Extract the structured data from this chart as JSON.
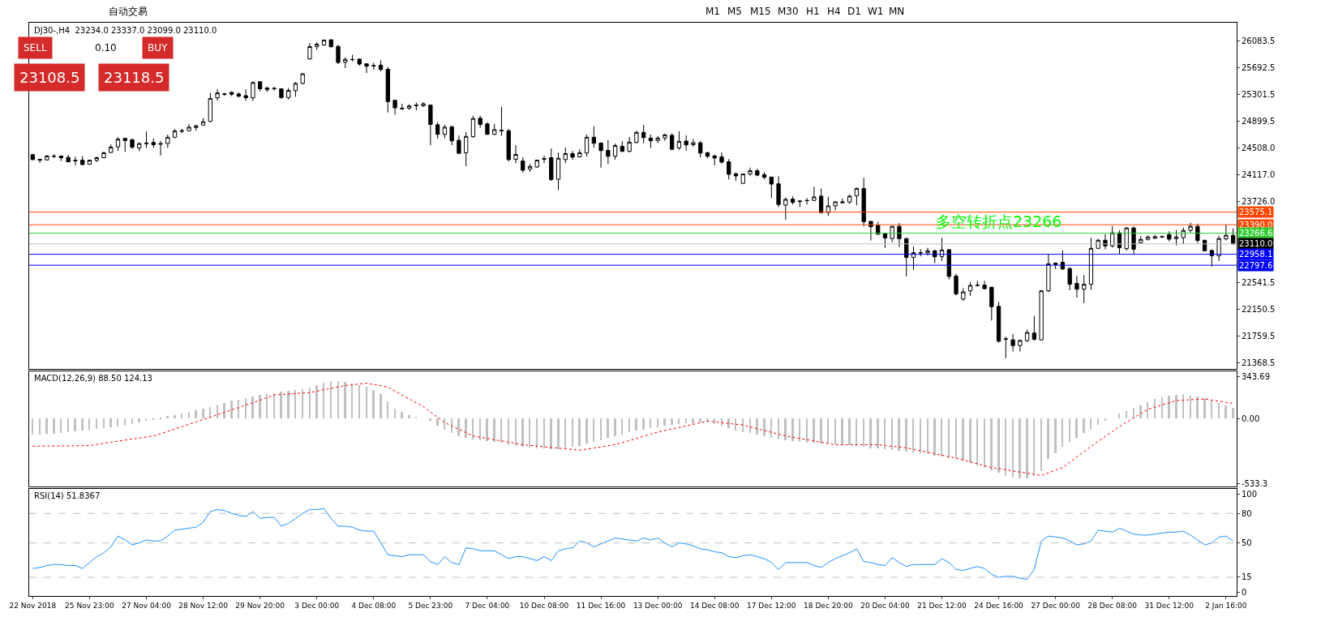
{
  "chart_data": [
    {
      "type": "candlestick",
      "title": "DJ30-,H4  23234.0 23337.0 23099.0 23110.0",
      "color": "#000000",
      "tick_labels": "y",
      "ohlc": [
        [
          24415,
          24427,
          24335,
          24343
        ],
        [
          24347,
          24355,
          24295,
          24335
        ],
        [
          24339,
          24407,
          24331,
          24395
        ],
        [
          24395,
          24423,
          24367,
          24391
        ],
        [
          24395,
          24403,
          24323,
          24371
        ],
        [
          24375,
          24415,
          24307,
          24311
        ],
        [
          24335,
          24387,
          24259,
          24327
        ],
        [
          24335,
          24395,
          24259,
          24271
        ],
        [
          24275,
          24343,
          24271,
          24335
        ],
        [
          24331,
          24387,
          24311,
          24371
        ],
        [
          24371,
          24459,
          24363,
          24443
        ],
        [
          24447,
          24566,
          24439,
          24526
        ],
        [
          24530,
          24674,
          24474,
          24642
        ],
        [
          24654,
          24662,
          24455,
          24622
        ],
        [
          24634,
          24650,
          24498,
          24526
        ],
        [
          24514,
          24594,
          24466,
          24578
        ],
        [
          24586,
          24753,
          24514,
          24578
        ],
        [
          24594,
          24654,
          24514,
          24562
        ],
        [
          24578,
          24614,
          24403,
          24570
        ],
        [
          24578,
          24709,
          24514,
          24670
        ],
        [
          24670,
          24793,
          24654,
          24761
        ],
        [
          24757,
          24793,
          24729,
          24765
        ],
        [
          24765,
          24861,
          24757,
          24817
        ],
        [
          24813,
          24857,
          24765,
          24837
        ],
        [
          24849,
          24952,
          24841,
          24897
        ],
        [
          24901,
          25319,
          24893,
          25239
        ],
        [
          25247,
          25371,
          25207,
          25319
        ],
        [
          25295,
          25319,
          25279,
          25303
        ],
        [
          25327,
          25343,
          25271,
          25299
        ],
        [
          25303,
          25327,
          25251,
          25271
        ],
        [
          25279,
          25371,
          25203,
          25247
        ],
        [
          25247,
          25490,
          25203,
          25470
        ],
        [
          25482,
          25490,
          25343,
          25379
        ],
        [
          25363,
          25410,
          25335,
          25391
        ],
        [
          25387,
          25406,
          25351,
          25379
        ],
        [
          25379,
          25383,
          25235,
          25251
        ],
        [
          25251,
          25391,
          25223,
          25355
        ],
        [
          25351,
          25478,
          25263,
          25458
        ],
        [
          25458,
          25610,
          25442,
          25598
        ],
        [
          25817,
          26048,
          25805,
          25996
        ],
        [
          25996,
          26060,
          25948,
          26032
        ],
        [
          26020,
          26100,
          26008,
          26092
        ],
        [
          26096,
          26100,
          25980,
          25996
        ],
        [
          26000,
          26020,
          25741,
          25765
        ],
        [
          25769,
          25841,
          25681,
          25809
        ],
        [
          25805,
          25876,
          25781,
          25807
        ],
        [
          25813,
          25821,
          25717,
          25741
        ],
        [
          25745,
          25749,
          25610,
          25709
        ],
        [
          25721,
          25761,
          25657,
          25713
        ],
        [
          25725,
          25797,
          25634,
          25661
        ],
        [
          25665,
          25701,
          25032,
          25191
        ],
        [
          25211,
          25215,
          25000,
          25100
        ],
        [
          25096,
          25160,
          25072,
          25088
        ],
        [
          25096,
          25152,
          25072,
          25128
        ],
        [
          25132,
          25179,
          25064,
          25140
        ],
        [
          25132,
          25183,
          25112,
          25160
        ],
        [
          25140,
          25144,
          24554,
          24857
        ],
        [
          24853,
          24889,
          24650,
          24713
        ],
        [
          24713,
          24853,
          24654,
          24817
        ],
        [
          24825,
          24833,
          24554,
          24618
        ],
        [
          24626,
          24698,
          24427,
          24435
        ],
        [
          24443,
          24745,
          24247,
          24682
        ],
        [
          24678,
          24984,
          24662,
          24944
        ],
        [
          24948,
          24984,
          24809,
          24857
        ],
        [
          24865,
          24889,
          24705,
          24713
        ],
        [
          24713,
          24865,
          24701,
          24781
        ],
        [
          24773,
          25116,
          24690,
          24765
        ],
        [
          24765,
          24793,
          24315,
          24343
        ],
        [
          24347,
          24554,
          24291,
          24419
        ],
        [
          24323,
          24375,
          24152,
          24188
        ],
        [
          24204,
          24275,
          24164,
          24243
        ],
        [
          24235,
          24339,
          24224,
          24335
        ],
        [
          24359,
          24403,
          24291,
          24351
        ],
        [
          24371,
          24506,
          24032,
          24052
        ],
        [
          24056,
          24447,
          23897,
          24363
        ],
        [
          24343,
          24518,
          24291,
          24431
        ],
        [
          24431,
          24470,
          24343,
          24379
        ],
        [
          24383,
          24494,
          24375,
          24443
        ],
        [
          24439,
          24709,
          24387,
          24670
        ],
        [
          24670,
          24829,
          24518,
          24582
        ],
        [
          24586,
          24594,
          24224,
          24474
        ],
        [
          24478,
          24626,
          24279,
          24391
        ],
        [
          24391,
          24578,
          24343,
          24550
        ],
        [
          24538,
          24614,
          24455,
          24463
        ],
        [
          24463,
          24674,
          24451,
          24598
        ],
        [
          24594,
          24765,
          24582,
          24741
        ],
        [
          24741,
          24853,
          24582,
          24666
        ],
        [
          24658,
          24709,
          24510,
          24618
        ],
        [
          24622,
          24686,
          24582,
          24658
        ],
        [
          24658,
          24721,
          24618,
          24705
        ],
        [
          24698,
          24729,
          24486,
          24494
        ],
        [
          24514,
          24757,
          24486,
          24610
        ],
        [
          24614,
          24698,
          24474,
          24558
        ],
        [
          24562,
          24646,
          24534,
          24590
        ],
        [
          24590,
          24614,
          24375,
          24439
        ],
        [
          24443,
          24459,
          24363,
          24391
        ],
        [
          24399,
          24411,
          24259,
          24367
        ],
        [
          24383,
          24447,
          24283,
          24307
        ],
        [
          24311,
          24351,
          24052,
          24128
        ],
        [
          24136,
          24156,
          24032,
          24104
        ],
        [
          23996,
          24140,
          23990,
          24132
        ],
        [
          24132,
          24228,
          24104,
          24180
        ],
        [
          24180,
          24208,
          24100,
          24116
        ],
        [
          24124,
          24156,
          24056,
          24084
        ],
        [
          24088,
          24092,
          23781,
          23985
        ],
        [
          23989,
          24100,
          23650,
          23686
        ],
        [
          23678,
          23789,
          23463,
          23761
        ],
        [
          23765,
          23805,
          23686,
          23718
        ],
        [
          23738,
          23750,
          23650,
          23730
        ],
        [
          23746,
          23781,
          23686,
          23742
        ],
        [
          23746,
          23945,
          23738,
          23797
        ],
        [
          23809,
          23921,
          23562,
          23566
        ],
        [
          23570,
          23801,
          23519,
          23666
        ],
        [
          23666,
          23734,
          23602,
          23726
        ],
        [
          23726,
          23773,
          23708,
          23714
        ],
        [
          23722,
          23833,
          23694,
          23809
        ],
        [
          23813,
          23933,
          23674,
          23921
        ],
        [
          23921,
          24076,
          23367,
          23435
        ],
        [
          23439,
          23443,
          23160,
          23363
        ],
        [
          23383,
          23431,
          23244,
          23252
        ],
        [
          23264,
          23272,
          23053,
          23196
        ],
        [
          23188,
          23375,
          23136,
          23367
        ],
        [
          23367,
          23415,
          23064,
          23188
        ],
        [
          23188,
          23200,
          22634,
          22913
        ],
        [
          22913,
          23072,
          22730,
          22981
        ],
        [
          22977,
          23033,
          22929,
          22981
        ],
        [
          22977,
          23053,
          22941,
          23009
        ],
        [
          23009,
          23025,
          22829,
          22921
        ],
        [
          22925,
          23200,
          22861,
          23021
        ],
        [
          23025,
          23029,
          22590,
          22634
        ],
        [
          22638,
          22674,
          22355,
          22379
        ],
        [
          22304,
          22463,
          22276,
          22407
        ],
        [
          22423,
          22551,
          22351,
          22503
        ],
        [
          22507,
          22571,
          22491,
          22503
        ],
        [
          22507,
          22571,
          22443,
          22455
        ],
        [
          22475,
          22483,
          21989,
          22192
        ],
        [
          22196,
          22260,
          21666,
          21686
        ],
        [
          21722,
          21754,
          21439,
          21714
        ],
        [
          21706,
          21794,
          21535,
          21623
        ],
        [
          21623,
          21710,
          21535,
          21698
        ],
        [
          21694,
          21854,
          21674,
          21814
        ],
        [
          21806,
          22057,
          21694,
          21714
        ],
        [
          21706,
          22435,
          21702,
          22423
        ],
        [
          22423,
          22961,
          22403,
          22818
        ],
        [
          22806,
          22838,
          22742,
          22830
        ],
        [
          22841,
          23017,
          22730,
          22742
        ],
        [
          22750,
          22770,
          22431,
          22519
        ],
        [
          22531,
          22642,
          22324,
          22447
        ],
        [
          22447,
          22654,
          22244,
          22519
        ],
        [
          22519,
          23200,
          22435,
          23045
        ],
        [
          23045,
          23184,
          23033,
          23164
        ],
        [
          23164,
          23252,
          23029,
          23080
        ],
        [
          23080,
          23371,
          23056,
          23272
        ],
        [
          23272,
          23307,
          22961,
          23053
        ],
        [
          23041,
          23359,
          23009,
          23343
        ],
        [
          23343,
          23367,
          22961,
          23033
        ],
        [
          23128,
          23224,
          23120,
          23176
        ],
        [
          23176,
          23232,
          23160,
          23212
        ],
        [
          23192,
          23240,
          23188,
          23216
        ],
        [
          23210,
          23232,
          23200,
          23214
        ],
        [
          23248,
          23295,
          23148,
          23180
        ],
        [
          23188,
          23311,
          23088,
          23212
        ],
        [
          23200,
          23347,
          23108,
          23307
        ],
        [
          23307,
          23419,
          23279,
          23367
        ],
        [
          23367,
          23407,
          23124,
          23160
        ],
        [
          23164,
          23168,
          23005,
          23009
        ],
        [
          23013,
          23029,
          22778,
          22937
        ],
        [
          22937,
          23228,
          22861,
          23188
        ],
        [
          23184,
          23395,
          23160,
          23236
        ],
        [
          23234,
          23337,
          23099,
          23110
        ]
      ],
      "ylim": [
        21281,
        26346
      ],
      "yticks": [
        26083.5,
        25692.5,
        25301.5,
        24899.5,
        {
          "value": 24508,
          "label": "24508.0"
        },
        {
          "value": 24117,
          "label": "24117.0"
        },
        {
          "value": 23726,
          "label": "23726.0"
        },
        22541.5,
        22150.5,
        21759.5,
        21368.5
      ],
      "ref_lines": [
        {
          "axis": "y",
          "value": 23575.1,
          "label": "23575.1",
          "color": "#ff4500"
        },
        {
          "axis": "y",
          "value": 23390.0,
          "label": "23390.0",
          "color": "#ff4500"
        },
        {
          "axis": "y",
          "value": 23266.6,
          "label": "23266.6",
          "color": "#32cd32"
        },
        {
          "axis": "y",
          "value": 23110.0,
          "label": "23110.0",
          "color": "#c0c0c0"
        },
        {
          "axis": "y",
          "value": 22958.1,
          "label": "22958.1",
          "color": "#0000ff"
        },
        {
          "axis": "y",
          "value": 22797.6,
          "label": "22797.6",
          "color": "#0000ff"
        }
      ],
      "annotations": [
        {
          "text": "多空转折点23266",
          "y": 23266
        },
        "SELL",
        "0.10",
        "BUY",
        "23108.5",
        "23118.5",
        "自动交易",
        "M1",
        "M5",
        "M15",
        "M30",
        "H1",
        "H4",
        "D1",
        "W1",
        "MN"
      ]
    },
    {
      "type": "bar",
      "title": "MACD(12,26,9) 88.50 124.13",
      "tick_labels": "y",
      "ylim": [
        -555,
        387
      ],
      "yticks": [
        343.69,
        {
          "value": 0,
          "label": "0.00"
        },
        -533.3
      ],
      "series": [
        {
          "type": "bar",
          "color": "#c0c0c0",
          "values": [
            -130,
            -128,
            -125,
            -122,
            -118,
            -112,
            -105,
            -100,
            -92,
            -85,
            -78,
            -70,
            -62,
            -55,
            -45,
            -32,
            -20,
            -5,
            10,
            22,
            32,
            42,
            55,
            68,
            82,
            98,
            115,
            130,
            145,
            158,
            170,
            182,
            195,
            202,
            210,
            218,
            226,
            234,
            242,
            255,
            275,
            295,
            310,
            305,
            300,
            290,
            275,
            260,
            235,
            200,
            140,
            80,
            55,
            30,
            15,
            0,
            -20,
            -55,
            -90,
            -120,
            -145,
            -160,
            -170,
            -178,
            -185,
            -190,
            -200,
            -215,
            -225,
            -230,
            -235,
            -240,
            -245,
            -250,
            -248,
            -240,
            -232,
            -220,
            -205,
            -190,
            -175,
            -160,
            -145,
            -128,
            -110,
            -98,
            -88,
            -78,
            -70,
            -60,
            -50,
            -45,
            -40,
            -35,
            -32,
            -30,
            -45,
            -60,
            -78,
            -95,
            -110,
            -120,
            -132,
            -145,
            -158,
            -170,
            -180,
            -185,
            -190,
            -195,
            -200,
            -203,
            -205,
            -208,
            -210,
            -215,
            -222,
            -230,
            -240,
            -245,
            -250,
            -255,
            -260,
            -268,
            -276,
            -284,
            -290,
            -300,
            -310,
            -320,
            -330,
            -345,
            -362,
            -380,
            -400,
            -420,
            -445,
            -470,
            -480,
            -488,
            -490,
            -470,
            -430,
            -330,
            -280,
            -230,
            -190,
            -155,
            -120,
            -85,
            -50,
            -20,
            0,
            40,
            65,
            88,
            110,
            135,
            160,
            175,
            185,
            195,
            200,
            190,
            180,
            170,
            150,
            130,
            110,
            88.5
          ]
        },
        {
          "type": "line",
          "color": "#ff0000",
          "line_style": "dotted",
          "values": [
            -225,
            -225,
            -224,
            -224,
            -223,
            -223,
            -222,
            -221,
            -220,
            -211,
            -202,
            -193,
            -184,
            -175,
            -167,
            -159,
            -150,
            -142,
            -123,
            -104,
            -85,
            -65,
            -46,
            -27,
            -8,
            12,
            32,
            52,
            72,
            91,
            111,
            130,
            151,
            172,
            194,
            198,
            202,
            205,
            209,
            213,
            225,
            236,
            248,
            259,
            271,
            277,
            284,
            290,
            279,
            269,
            258,
            226,
            194,
            161,
            129,
            97,
            54,
            11,
            -32,
            -60,
            -87,
            -115,
            -142,
            -152,
            -162,
            -172,
            -182,
            -192,
            -203,
            -213,
            -219,
            -224,
            -230,
            -236,
            -241,
            -247,
            -252,
            -258,
            -249,
            -240,
            -231,
            -222,
            -213,
            -196,
            -179,
            -162,
            -144,
            -127,
            -110,
            -97,
            -84,
            -72,
            -59,
            -46,
            -33,
            -20,
            -26,
            -33,
            -39,
            -46,
            -52,
            -67,
            -82,
            -97,
            -112,
            -127,
            -142,
            -152,
            -162,
            -172,
            -183,
            -193,
            -203,
            -213,
            -213,
            -213,
            -213,
            -213,
            -213,
            -213,
            -219,
            -226,
            -232,
            -239,
            -251,
            -263,
            -275,
            -287,
            -299,
            -311,
            -323,
            -338,
            -354,
            -369,
            -385,
            -400,
            -409,
            -418,
            -428,
            -437,
            -446,
            -456,
            -465,
            -443,
            -422,
            -400,
            -357,
            -313,
            -270,
            -226,
            -186,
            -146,
            -105,
            -65,
            -29,
            6,
            42,
            77,
            95,
            113,
            130,
            148,
            151,
            155,
            158,
            161,
            152,
            143,
            133,
            124.13
          ]
        }
      ]
    },
    {
      "type": "line",
      "title": "RSI(14) 51.8367",
      "color": "#1e90ff",
      "categories": [
        "22 Nov 2018",
        null,
        null,
        null,
        null,
        null,
        null,
        null,
        "25 Nov 23:00",
        null,
        null,
        null,
        null,
        null,
        null,
        null,
        "27 Nov 04:00",
        null,
        null,
        null,
        null,
        null,
        null,
        null,
        "28 Nov 12:00",
        null,
        null,
        null,
        null,
        null,
        null,
        null,
        "29 Nov 20:00",
        null,
        null,
        null,
        null,
        null,
        null,
        null,
        "3 Dec 00:00",
        null,
        null,
        null,
        null,
        null,
        null,
        null,
        "4 Dec 08:00",
        null,
        null,
        null,
        null,
        null,
        null,
        null,
        "5 Dec 23:00",
        null,
        null,
        null,
        null,
        null,
        null,
        null,
        "7 Dec 04:00",
        null,
        null,
        null,
        null,
        null,
        null,
        null,
        "10 Dec 08:00",
        null,
        null,
        null,
        null,
        null,
        null,
        null,
        "11 Dec 16:00",
        null,
        null,
        null,
        null,
        null,
        null,
        null,
        "13 Dec 00:00",
        null,
        null,
        null,
        null,
        null,
        null,
        null,
        "14 Dec 08:00",
        null,
        null,
        null,
        null,
        null,
        null,
        null,
        "17 Dec 12:00",
        null,
        null,
        null,
        null,
        null,
        null,
        null,
        "18 Dec 20:00",
        null,
        null,
        null,
        null,
        null,
        null,
        null,
        "20 Dec 04:00",
        null,
        null,
        null,
        null,
        null,
        null,
        null,
        "21 Dec 12:00",
        null,
        null,
        null,
        null,
        null,
        null,
        null,
        "24 Dec 16:00",
        null,
        null,
        null,
        null,
        null,
        null,
        null,
        "27 Dec 00:00",
        null,
        null,
        null,
        null,
        null,
        null,
        null,
        "28 Dec 08:00",
        null,
        null,
        null,
        null,
        null,
        null,
        null,
        "31 Dec 12:00",
        null,
        null,
        null,
        null,
        null,
        null,
        null,
        "2 Jan 16:00",
        null
      ],
      "ylim": [
        -4,
        105
      ],
      "yticks": [
        100,
        80,
        50,
        15,
        0
      ],
      "values": [
        24,
        25,
        27,
        28,
        28,
        27,
        27,
        24,
        30,
        36,
        40,
        46,
        57,
        53,
        48,
        50,
        53,
        52,
        52,
        57,
        63,
        64,
        65,
        66,
        71,
        82,
        84,
        83,
        80,
        78,
        77,
        82,
        75,
        76,
        76,
        67,
        70,
        75,
        80,
        84,
        84,
        85,
        75,
        67,
        67,
        66,
        63,
        62,
        62,
        50,
        38,
        37,
        36,
        38,
        38,
        38,
        31,
        28,
        36,
        30,
        28,
        45,
        44,
        42,
        42,
        42,
        38,
        34,
        36,
        36,
        34,
        32,
        36,
        32,
        42,
        44,
        45,
        52,
        50,
        46,
        49,
        52,
        55,
        54,
        53,
        52,
        55,
        53,
        55,
        50,
        46,
        50,
        49,
        47,
        44,
        43,
        41,
        40,
        36,
        35,
        37,
        38,
        36,
        34,
        30,
        23,
        30,
        30,
        30,
        30,
        27,
        25,
        30,
        34,
        37,
        40,
        44,
        31,
        30,
        28,
        27,
        35,
        30,
        26,
        28,
        28,
        28,
        28,
        34,
        30,
        23,
        22,
        24,
        26,
        24,
        18,
        15,
        16,
        16,
        14,
        13,
        23,
        52,
        57,
        56,
        55,
        52,
        48,
        49,
        52,
        63,
        62,
        61,
        65,
        62,
        59,
        58,
        58,
        59,
        60,
        61,
        61,
        62,
        58,
        53,
        48,
        50,
        56,
        57,
        51.8367
      ],
      "ref_lines": [
        {
          "axis": "y",
          "value": 80,
          "color": "#c0c0c0",
          "line_style": "dashed"
        },
        {
          "axis": "y",
          "value": 50,
          "color": "#c0c0c0",
          "line_style": "dashed"
        },
        {
          "axis": "y",
          "value": 15,
          "color": "#c0c0c0",
          "line_style": "dashed"
        }
      ]
    }
  ]
}
